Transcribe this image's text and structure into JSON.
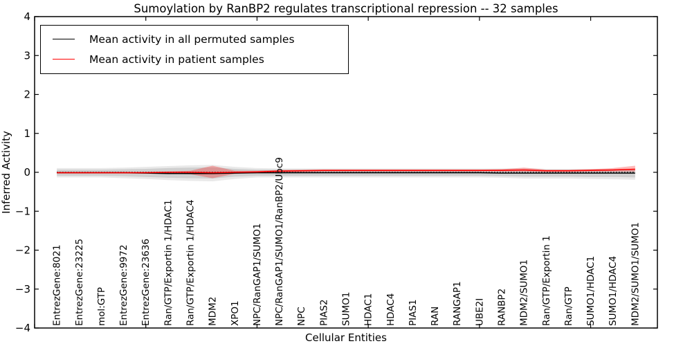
{
  "figure": {
    "background": "#ffffff"
  },
  "chart_data": {
    "type": "line",
    "title": "Sumoylation by RanBP2 regulates transcriptional repression -- 32 samples",
    "xlabel": "Cellular Entities",
    "ylabel": "Inferred Activity",
    "ylim": [
      -4,
      4
    ],
    "xlim": [
      0,
      28
    ],
    "yticks": [
      -4,
      -3,
      -2,
      -1,
      0,
      1,
      2,
      3,
      4
    ],
    "ytick_labels": [
      "−4",
      "−3",
      "−2",
      "−1",
      "0",
      "1",
      "2",
      "3",
      "4"
    ],
    "xticks_unlabeled": [
      0,
      5,
      10,
      15,
      20,
      25
    ],
    "grid": false,
    "legend_position": "upper-left",
    "frame_color": "#000000",
    "categories": [
      "EntrezGene:8021",
      "EntrezGene:23225",
      "mol:GTP",
      "EntrezGene:9972",
      "EntrezGene:23636",
      "Ran/GTP/Exportin 1/HDAC1",
      "Ran/GTP/Exportin 1/HDAC4",
      "MDM2",
      "XPO1",
      "NPC/RanGAP1/SUMO1",
      "NPC/RanGAP1/SUMO1/RanBP2/Ubc9",
      "NPC",
      "PIAS2",
      "SUMO1",
      "HDAC1",
      "HDAC4",
      "PIAS1",
      "RAN",
      "RANGAP1",
      "UBE2I",
      "RANBP2",
      "MDM2/SUMO1",
      "Ran/GTP/Exportin 1",
      "Ran/GTP",
      "SUMO1/HDAC1",
      "SUMO1/HDAC4",
      "MDM2/SUMO1/SUMO1"
    ],
    "x_positions": [
      1,
      2,
      3,
      4,
      5,
      6,
      7,
      8,
      9,
      10,
      11,
      12,
      13,
      14,
      15,
      16,
      17,
      18,
      19,
      20,
      21,
      22,
      23,
      24,
      25,
      26,
      27
    ],
    "series": [
      {
        "name": "Mean activity in all permuted samples",
        "color": "#000000",
        "style": "solid",
        "values": [
          -0.01,
          -0.01,
          -0.01,
          -0.01,
          -0.02,
          -0.03,
          -0.03,
          -0.03,
          -0.02,
          -0.01,
          -0.01,
          -0.01,
          -0.01,
          -0.01,
          -0.01,
          -0.01,
          -0.01,
          -0.01,
          -0.01,
          -0.01,
          -0.02,
          -0.02,
          -0.02,
          -0.02,
          -0.02,
          -0.02,
          -0.02
        ]
      },
      {
        "name": "Mean activity in patient samples",
        "color": "#ff0000",
        "style": "solid",
        "values": [
          -0.01,
          -0.01,
          -0.01,
          -0.01,
          -0.01,
          0.0,
          0.0,
          -0.01,
          0.0,
          0.01,
          0.03,
          0.04,
          0.05,
          0.05,
          0.05,
          0.05,
          0.05,
          0.05,
          0.05,
          0.05,
          0.05,
          0.06,
          0.04,
          0.04,
          0.05,
          0.06,
          0.08
        ]
      }
    ],
    "bands": [
      {
        "name": "permuted-spread-outer",
        "color": "#999999",
        "opacity": 0.22,
        "upper": [
          0.11,
          0.11,
          0.11,
          0.12,
          0.14,
          0.16,
          0.18,
          0.19,
          0.14,
          0.11,
          0.1,
          0.1,
          0.1,
          0.1,
          0.1,
          0.1,
          0.1,
          0.1,
          0.1,
          0.1,
          0.1,
          0.11,
          0.09,
          0.09,
          0.09,
          0.09,
          0.09
        ],
        "lower": [
          -0.13,
          -0.13,
          -0.13,
          -0.15,
          -0.17,
          -0.2,
          -0.22,
          -0.23,
          -0.17,
          -0.13,
          -0.13,
          -0.13,
          -0.13,
          -0.13,
          -0.13,
          -0.13,
          -0.13,
          -0.13,
          -0.13,
          -0.13,
          -0.14,
          -0.16,
          -0.16,
          -0.16,
          -0.17,
          -0.18,
          -0.19
        ]
      },
      {
        "name": "permuted-spread-inner",
        "color": "#999999",
        "opacity": 0.32,
        "upper": [
          0.07,
          0.07,
          0.07,
          0.08,
          0.09,
          0.11,
          0.12,
          0.13,
          0.09,
          0.07,
          0.07,
          0.07,
          0.07,
          0.07,
          0.07,
          0.07,
          0.07,
          0.07,
          0.07,
          0.07,
          0.07,
          0.07,
          0.06,
          0.06,
          0.06,
          0.06,
          0.06
        ],
        "lower": [
          -0.09,
          -0.09,
          -0.09,
          -0.1,
          -0.12,
          -0.14,
          -0.15,
          -0.16,
          -0.11,
          -0.09,
          -0.09,
          -0.09,
          -0.09,
          -0.09,
          -0.09,
          -0.09,
          -0.09,
          -0.09,
          -0.09,
          -0.09,
          -0.1,
          -0.11,
          -0.11,
          -0.11,
          -0.12,
          -0.12,
          -0.13
        ]
      },
      {
        "name": "patient-spread",
        "color": "#ff0000",
        "opacity": 0.28,
        "upper": [
          0.01,
          0.01,
          0.01,
          0.01,
          0.01,
          0.02,
          0.04,
          0.17,
          0.04,
          0.04,
          0.06,
          0.07,
          0.07,
          0.07,
          0.07,
          0.07,
          0.07,
          0.07,
          0.07,
          0.07,
          0.08,
          0.12,
          0.07,
          0.07,
          0.08,
          0.11,
          0.17
        ],
        "lower": [
          -0.03,
          -0.03,
          -0.03,
          -0.03,
          -0.03,
          -0.03,
          -0.05,
          -0.15,
          -0.04,
          -0.02,
          0.0,
          0.01,
          0.02,
          0.02,
          0.02,
          0.02,
          0.02,
          0.02,
          0.02,
          0.02,
          0.02,
          0.02,
          0.01,
          0.01,
          0.02,
          0.02,
          0.02
        ]
      }
    ],
    "zero_line": {
      "y": 0,
      "color": "#000000",
      "style": "dotted"
    }
  }
}
